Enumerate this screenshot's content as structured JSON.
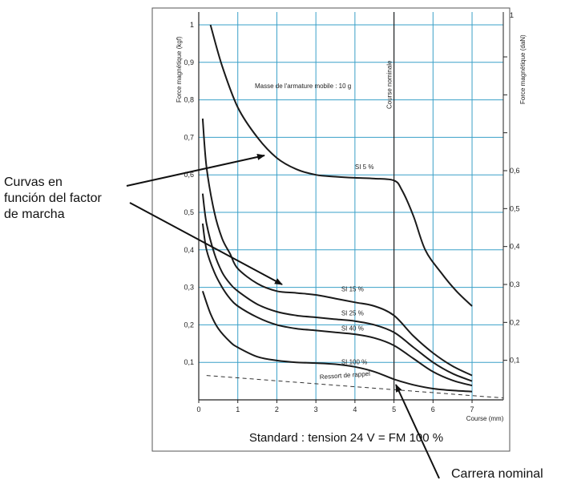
{
  "chart_data": {
    "type": "line",
    "xlabel": "Course (mm)",
    "ylabel_left": "Force magnétique (kgf)",
    "ylabel_right": "Force magnétique (daN)",
    "xlim": [
      0,
      7.8
    ],
    "ylim_left": [
      0,
      1.0
    ],
    "ylim_right": [
      0,
      0.98
    ],
    "x_ticks": [
      0,
      1,
      2,
      3,
      4,
      5,
      6,
      7
    ],
    "x_tick_labels": [
      "0",
      "1",
      "2",
      "3",
      "4",
      "5",
      "6",
      "7"
    ],
    "y_left_ticks": [
      0.1,
      0.2,
      0.3,
      0.4,
      0.5,
      0.6,
      0.7,
      0.8,
      0.9,
      1.0
    ],
    "y_left_tick_labels": [
      "0,1",
      "0,2",
      "0,3",
      "0,4",
      "0,5",
      "0,6",
      "0,7",
      "0,8",
      "0,9",
      "1"
    ],
    "y_right_ticks": [
      0.1,
      0.2,
      0.3,
      0.4,
      0.5,
      0.6
    ],
    "y_right_tick_labels": [
      "0,1",
      "0,2",
      "0,3",
      "0,4",
      "0,5",
      "0,6"
    ],
    "y_right_top_label": "1",
    "grid": true,
    "nominal_stroke_x": 5.0,
    "nominal_stroke_label": "Course nominale",
    "mass_note": "Masse de l'armature mobile : 10 g",
    "footer": "Standard : tension 24 V = FM 100 %",
    "series": [
      {
        "name": "SI 5 %",
        "x": [
          0.3,
          0.6,
          1.0,
          1.5,
          2.0,
          2.5,
          3.0,
          3.5,
          4.0,
          4.5,
          5.0,
          5.2,
          5.5,
          5.8,
          6.2,
          6.6,
          7.0
        ],
        "y": [
          1.0,
          0.89,
          0.78,
          0.7,
          0.645,
          0.615,
          0.6,
          0.595,
          0.592,
          0.59,
          0.585,
          0.56,
          0.49,
          0.4,
          0.34,
          0.29,
          0.25
        ]
      },
      {
        "name": "SI 15 %",
        "x": [
          0.1,
          0.2,
          0.4,
          0.6,
          0.8,
          1.0,
          1.5,
          2.0,
          2.5,
          3.0,
          3.5,
          4.0,
          4.5,
          5.0,
          5.5,
          6.0,
          6.5,
          7.0
        ],
        "y": [
          0.75,
          0.62,
          0.5,
          0.43,
          0.39,
          0.35,
          0.31,
          0.29,
          0.285,
          0.28,
          0.27,
          0.26,
          0.25,
          0.225,
          0.17,
          0.125,
          0.09,
          0.065
        ]
      },
      {
        "name": "SI 25 %",
        "x": [
          0.1,
          0.2,
          0.4,
          0.6,
          0.8,
          1.0,
          1.5,
          2.0,
          2.5,
          3.0,
          3.5,
          4.0,
          4.5,
          5.0,
          5.5,
          6.0,
          6.5,
          7.0
        ],
        "y": [
          0.55,
          0.47,
          0.39,
          0.34,
          0.31,
          0.29,
          0.255,
          0.235,
          0.225,
          0.22,
          0.215,
          0.21,
          0.2,
          0.18,
          0.14,
          0.1,
          0.07,
          0.05
        ]
      },
      {
        "name": "SI 40 %",
        "x": [
          0.1,
          0.2,
          0.4,
          0.6,
          0.8,
          1.0,
          1.5,
          2.0,
          2.5,
          3.0,
          3.5,
          4.0,
          4.5,
          5.0,
          5.5,
          6.0,
          6.5,
          7.0
        ],
        "y": [
          0.47,
          0.4,
          0.34,
          0.3,
          0.27,
          0.25,
          0.22,
          0.2,
          0.19,
          0.185,
          0.18,
          0.175,
          0.165,
          0.145,
          0.11,
          0.075,
          0.052,
          0.038
        ]
      },
      {
        "name": "SI 100 %",
        "x": [
          0.1,
          0.3,
          0.5,
          0.8,
          1.0,
          1.5,
          2.0,
          2.5,
          3.0,
          3.5,
          4.0,
          4.5,
          5.0,
          5.5,
          6.0,
          6.5,
          7.0
        ],
        "y": [
          0.29,
          0.23,
          0.19,
          0.155,
          0.14,
          0.115,
          0.105,
          0.1,
          0.098,
          0.095,
          0.088,
          0.075,
          0.055,
          0.04,
          0.03,
          0.025,
          0.022
        ]
      }
    ],
    "spring": {
      "name": "Ressort de rappel",
      "x": [
        0.2,
        7.8
      ],
      "y": [
        0.065,
        0.005
      ],
      "style": "dashed"
    }
  },
  "annotations": {
    "curves_label": [
      "Curvas en",
      "función del factor",
      "de marcha"
    ],
    "nominal_label": "Carrera nominal"
  },
  "colors": {
    "grid": "#3aa0c8",
    "curve": "#1a1a1a",
    "frame": "#555555"
  }
}
